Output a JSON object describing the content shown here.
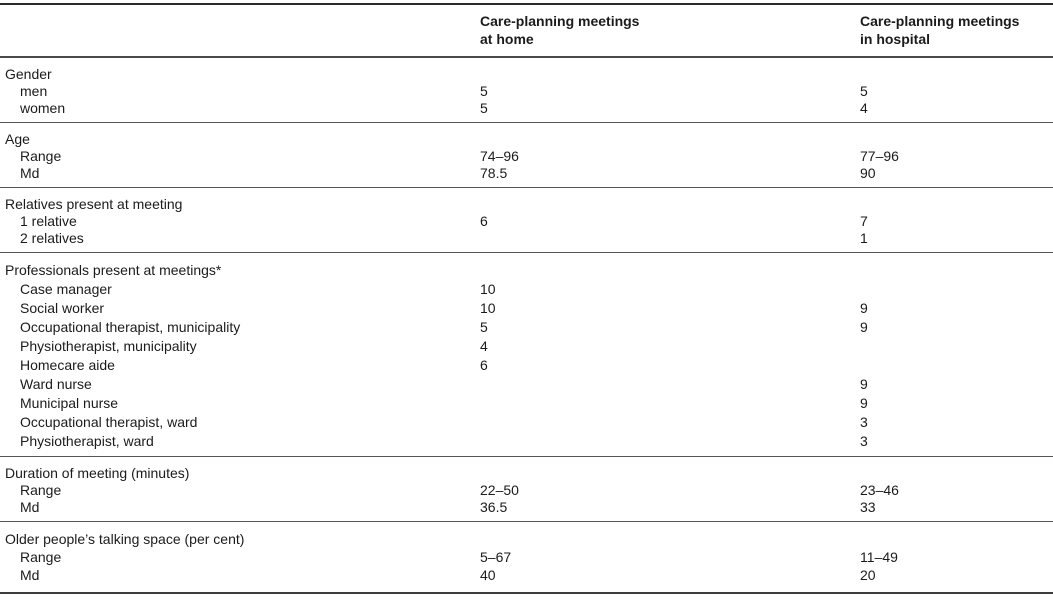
{
  "colors": {
    "background": "#ffffff",
    "text": "#1b1b1b",
    "rule_heavy": "#2b2b2b",
    "rule_light": "#555555"
  },
  "header": {
    "stub": "",
    "home": {
      "line1": "Care-planning meetings",
      "line2": "at home"
    },
    "hospital": {
      "line1": "Care-planning meetings",
      "line2": "in hospital"
    }
  },
  "sections": [
    {
      "title": "Gender",
      "rows": [
        {
          "label": "men",
          "home": "5",
          "hospital": "5"
        },
        {
          "label": "women",
          "home": "5",
          "hospital": "4"
        }
      ]
    },
    {
      "title": "Age",
      "rows": [
        {
          "label": "Range",
          "home": "74–96",
          "hospital": "77–96"
        },
        {
          "label": "Md",
          "home": "78.5",
          "hospital": "90"
        }
      ]
    },
    {
      "title": "Relatives present at meeting",
      "rows": [
        {
          "label": "1 relative",
          "home": "6",
          "hospital": "7"
        },
        {
          "label": "2 relatives",
          "home": "",
          "hospital": "1"
        }
      ]
    },
    {
      "title": "Professionals present at meetings*",
      "rows": [
        {
          "label": "Case manager",
          "home": "10",
          "hospital": ""
        },
        {
          "label": "Social worker",
          "home": "10",
          "hospital": "9"
        },
        {
          "label": "Occupational therapist, municipality",
          "home": "5",
          "hospital": "9"
        },
        {
          "label": "Physiotherapist, municipality",
          "home": "4",
          "hospital": ""
        },
        {
          "label": "Homecare aide",
          "home": "6",
          "hospital": ""
        },
        {
          "label": "Ward nurse",
          "home": "",
          "hospital": "9"
        },
        {
          "label": "Municipal nurse",
          "home": "",
          "hospital": "9"
        },
        {
          "label": "Occupational therapist, ward",
          "home": "",
          "hospital": "3"
        },
        {
          "label": "Physiotherapist, ward",
          "home": "",
          "hospital": "3"
        }
      ]
    },
    {
      "title": "Duration of meeting (minutes)",
      "rows": [
        {
          "label": "Range",
          "home": "22–50",
          "hospital": "23–46"
        },
        {
          "label": "Md",
          "home": "36.5",
          "hospital": "33"
        }
      ]
    },
    {
      "title": "Older people’s talking space (per cent)",
      "rows": [
        {
          "label": "Range",
          "home": "5–67",
          "hospital": "11–49"
        },
        {
          "label": "Md",
          "home": "40",
          "hospital": "20"
        }
      ]
    }
  ]
}
